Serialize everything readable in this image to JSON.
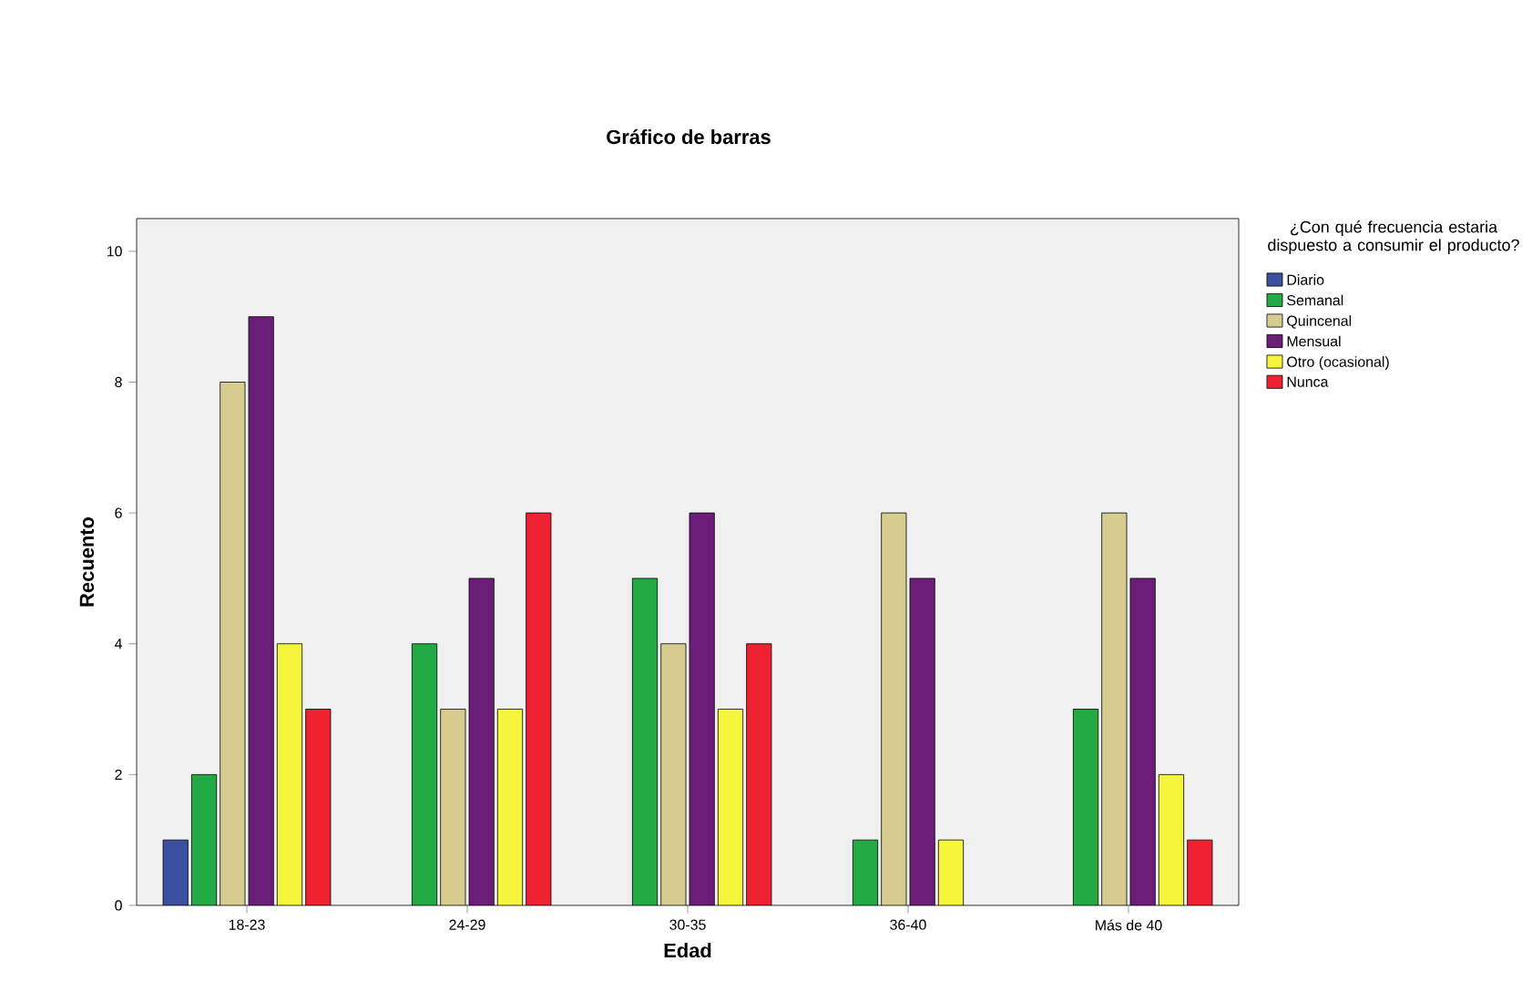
{
  "chart_data": {
    "type": "bar",
    "title": "Gráfico de barras",
    "xlabel": "Edad",
    "ylabel": "Recuento",
    "legend_title": "¿Con qué frecuencia estaria dispuesto a consumir el producto?",
    "categories": [
      "18-23",
      "24-29",
      "30-35",
      "36-40",
      "Más de 40"
    ],
    "ylim": [
      0,
      10.5
    ],
    "yticks": [
      0,
      2,
      4,
      6,
      8,
      10
    ],
    "legend": "right",
    "series": [
      {
        "name": "Diario",
        "color": "#3a4fa0",
        "values": [
          1,
          null,
          null,
          null,
          null
        ]
      },
      {
        "name": "Semanal",
        "color": "#22aa44",
        "values": [
          2,
          4,
          5,
          1,
          3
        ]
      },
      {
        "name": "Quincenal",
        "color": "#d6cc8f",
        "values": [
          8,
          3,
          4,
          6,
          6
        ]
      },
      {
        "name": "Mensual",
        "color": "#6b1e78",
        "values": [
          9,
          5,
          6,
          5,
          5
        ]
      },
      {
        "name": "Otro (ocasional)",
        "color": "#f5f53c",
        "values": [
          4,
          3,
          3,
          1,
          2
        ]
      },
      {
        "name": "Nunca",
        "color": "#ee2233",
        "values": [
          3,
          6,
          4,
          null,
          1
        ]
      }
    ]
  }
}
